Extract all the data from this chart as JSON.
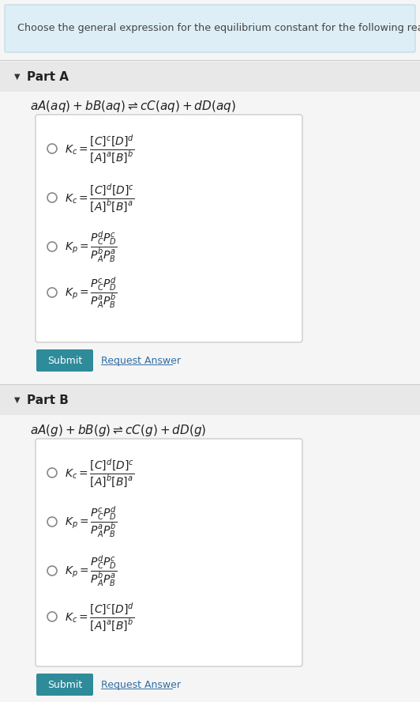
{
  "header_text": "Choose the general expression for the equilibrium constant for the following reactions:",
  "header_bg": "#ddeef6",
  "header_border": "#c5dce8",
  "part_a_label": "Part A",
  "part_a_reaction": "$aA(aq) + bB(aq) \\rightleftharpoons cC(aq) + dD(aq)$",
  "part_a_options": [
    "$K_c = \\dfrac{[C]^c[D]^d}{[A]^a[B]^b}$",
    "$K_c = \\dfrac{[C]^d[D]^c}{[A]^b[B]^a}$",
    "$K_p = \\dfrac{P_C^d P_D^c}{P_A^b P_B^a}$",
    "$K_p = \\dfrac{P_C^c P_D^d}{P_A^a P_B^b}$"
  ],
  "part_b_label": "Part B",
  "part_b_reaction": "$aA(g) + bB(g) \\rightleftharpoons cC(g) + dD(g)$",
  "part_b_options": [
    "$K_c = \\dfrac{[C]^d[D]^c}{[A]^b[B]^a}$",
    "$K_p = \\dfrac{P_C^c P_D^d}{P_A^a P_B^b}$",
    "$K_p = \\dfrac{P_C^d P_D^c}{P_A^b P_B^a}$",
    "$K_c = \\dfrac{[C]^c[D]^d}{[A]^a[B]^b}$"
  ],
  "submit_color": "#2e8b9a",
  "submit_text": "Submit",
  "request_text": "Request Answer",
  "request_link_color": "#2e6da4",
  "text_color": "#444444",
  "option_box_bg": "#ffffff",
  "option_box_border": "#cccccc",
  "section_bg": "#e8e8e8",
  "bg_color": "#f5f5f5"
}
